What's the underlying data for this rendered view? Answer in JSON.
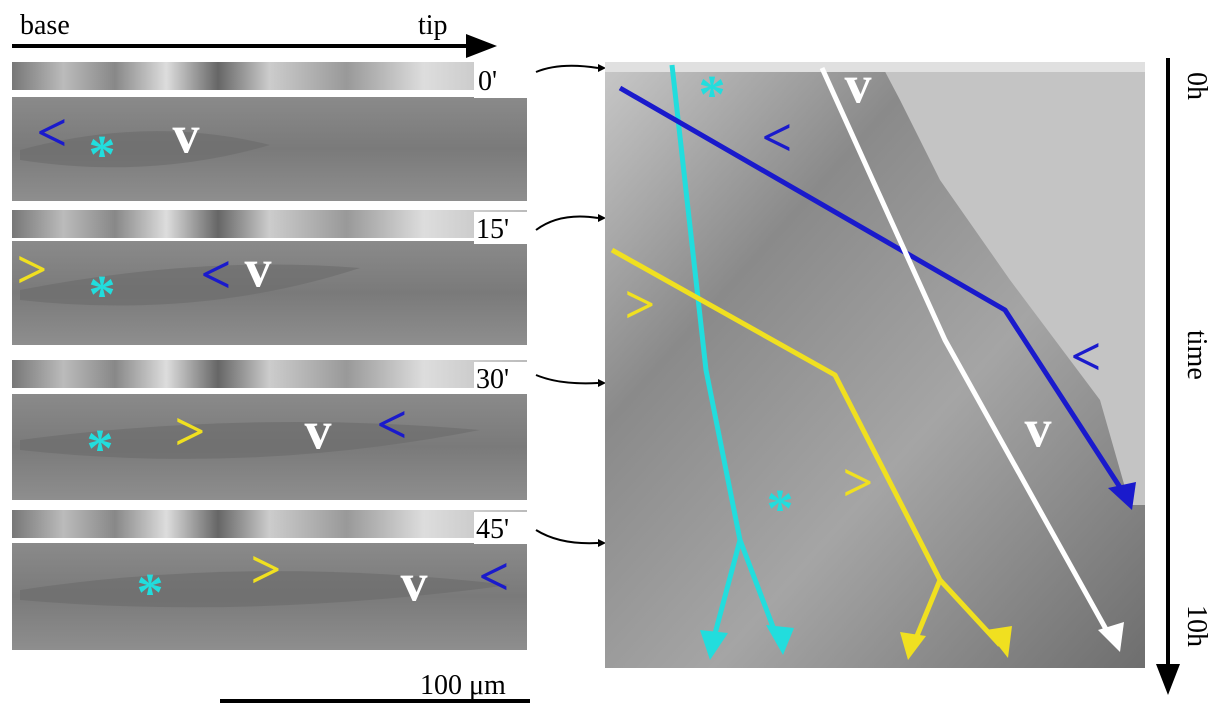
{
  "header": {
    "base": "base",
    "tip": "tip"
  },
  "panels": [
    {
      "time": "0'",
      "markers": [
        "<",
        "*",
        "v"
      ]
    },
    {
      "time": "15'",
      "markers": [
        ">",
        "*",
        "<",
        "v"
      ]
    },
    {
      "time": "30'",
      "markers": [
        "*",
        ">",
        "v",
        "<"
      ]
    },
    {
      "time": "45'",
      "markers": [
        "*",
        ">",
        "v",
        "<"
      ]
    }
  ],
  "scale_bar": "100 μm",
  "kymograph": {
    "time_axis": {
      "start": "0h",
      "label": "time",
      "end": "10h"
    },
    "markers": [
      "*",
      "v",
      "<",
      ">",
      "<",
      "v",
      ">",
      "*"
    ]
  }
}
